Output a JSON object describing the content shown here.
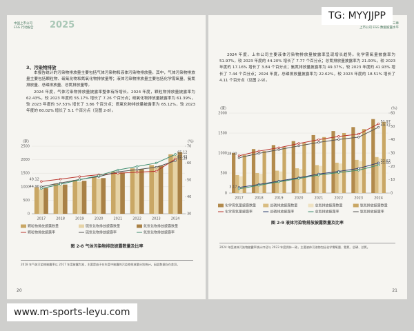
{
  "watermark": {
    "top": "TG: MYYJJPP",
    "bottom": "www.m-sports-leyu.com"
  },
  "left_page": {
    "header": {
      "brand_line1": "中国上市公司",
      "brand_line2": "ESG 行动报告",
      "year": "2025"
    },
    "section": "3、污染物排放",
    "paragraphs": [
      "本报告统计的污染物排放量主要包括气体污染物和液体污染物排放量。其中，气体污染物排放量主要包括颗粒物、硫氧化物和氮氧化物排放量等；液体污染物排放量主要包括化学需氧量、氨氮排放量、总磷排放量、总氮排放量等。",
      "2024 年度，气体污染物排放量披露率整体有所增长。2024 年度，颗粒物排放量披露率为 62.43%，较 2023 年度的 55.17% 增长了 7.26 个百分点；硫氧化物排放量披露率为 61.39%，较 2023 年度的 57.53% 增长了 3.86 个百分点；氮氧化物排放量披露率为 65.12%，较 2023 年度的 60.02% 增长了 5.1 个百分点（见图 2-8）。"
    ],
    "chart": {
      "type": "bar",
      "y_label": "(家)",
      "y2_label": "(%)",
      "categories": [
        "2017",
        "2018",
        "2019",
        "2020",
        "2021",
        "2022",
        "2023",
        "2024"
      ],
      "ylim": [
        0,
        2500
      ],
      "yticks": [
        0,
        500,
        1000,
        1500,
        2000,
        2500
      ],
      "y2lim": [
        30,
        70
      ],
      "y2ticks": [
        30,
        40,
        50,
        60,
        70
      ],
      "grid": true,
      "series": [
        {
          "name": "颗粒物排放披露数量",
          "color": "#c9a765",
          "values": [
            980,
            1120,
            1250,
            1350,
            1560,
            1680,
            1800,
            2200
          ]
        },
        {
          "name": "硫氧化物排放披露数量",
          "color": "#e6d3a6",
          "values": [
            900,
            1050,
            1180,
            1300,
            1500,
            1620,
            1750,
            2150
          ]
        },
        {
          "name": "氮氧化物排放披露数量",
          "color": "#a98146",
          "values": [
            950,
            1080,
            1220,
            1320,
            1530,
            1650,
            1780,
            2280
          ]
        },
        {
          "name": "颗粒物排放披露率",
          "color": "#b8322a",
          "axis": "y2",
          "values": [
            49.12,
            50.5,
            52.0,
            53.1,
            54.0,
            54.6,
            55.17,
            62.43
          ],
          "value_labels": [
            "49.12",
            null,
            null,
            null,
            null,
            null,
            null,
            "62.43"
          ]
        },
        {
          "name": "硫氧化物排放披露率",
          "color": "#555555",
          "axis": "y2",
          "values": [
            46.0,
            48.2,
            50.3,
            52.0,
            54.8,
            56.1,
            57.53,
            61.39
          ],
          "value_labels": [
            null,
            null,
            null,
            null,
            null,
            null,
            null,
            "61.39"
          ]
        },
        {
          "name": "氮氧化物排放披露率",
          "color": "#3d8c6e",
          "axis": "y2",
          "values": [
            44.9,
            47.5,
            50.1,
            52.6,
            55.9,
            58.0,
            60.02,
            65.12
          ],
          "value_labels": [
            "44.90",
            null,
            null,
            null,
            null,
            null,
            null,
            "65.12"
          ]
        }
      ]
    },
    "caption": "图 2-8 气体污染物排放披露数量及比率",
    "footnote": "2018 年气体污染物披露率以 2017 年度披露为准，主要是由于在年度中披露的污染物排放量分别统计，因此数据存在差异。",
    "page_number": "20"
  },
  "right_page": {
    "header": {
      "chapter": "第三章",
      "subtitle": "上市公司 ESG 数据披露水平"
    },
    "paragraphs": [
      "2024 年度，上市公司主要液体污染物排放量披露率呈现增长趋势。化学需氧量披露率为 51.97%，较 2023 年度的 44.20% 增长了 7.77 个百分点；总氮排放量披露率为 21.00%，较 2023 年度的 17.16% 增长了 3.84 个百分点；氨氮排放量披露率为 49.37%，较 2023 年度的 41.93% 增长了 7.44 个百分点；2024 年度，总磷排放量披露率为 22.62%，较 2023 年度的 18.51% 增长了 4.11 个百分点（见图 2-9）。"
    ],
    "chart": {
      "type": "bar",
      "y_label": "(家)",
      "y2_label": "(%)",
      "categories": [
        "2017",
        "2018",
        "2019",
        "2020",
        "2021",
        "2022",
        "2023",
        "2024"
      ],
      "ylim": [
        0,
        2000
      ],
      "yticks": [
        0,
        500,
        1000,
        1500,
        2000
      ],
      "y2lim": [
        0,
        60
      ],
      "y2ticks": [
        0,
        10,
        20,
        30,
        40,
        50,
        60
      ],
      "grid": true,
      "series": [
        {
          "name": "化学需氧量披露数量",
          "color": "#b28a4c",
          "values": [
            1000,
            1100,
            1200,
            1300,
            1450,
            1550,
            1650,
            1850
          ]
        },
        {
          "name": "总磷排放披露数量",
          "color": "#d9bd82",
          "values": [
            450,
            500,
            560,
            620,
            700,
            760,
            830,
            900
          ]
        },
        {
          "name": "总氮排放披露数量",
          "color": "#efe2c2",
          "values": [
            420,
            480,
            540,
            600,
            680,
            740,
            800,
            870
          ]
        },
        {
          "name": "氨氮排放披露数量",
          "color": "#c9a765",
          "values": [
            950,
            1050,
            1150,
            1250,
            1400,
            1500,
            1600,
            1780
          ]
        },
        {
          "name": "化学需氧量披露率",
          "color": "#b8322a",
          "axis": "y2",
          "values": [
            28.0,
            31.5,
            34.0,
            37.2,
            40.1,
            42.5,
            44.2,
            51.97
          ],
          "value_labels": [
            "28.00",
            null,
            null,
            null,
            null,
            null,
            null,
            "51.97"
          ]
        },
        {
          "name": "总磷排放披露率",
          "color": "#2c3e70",
          "axis": "y2",
          "values": [
            4.2,
            6.5,
            9.0,
            11.5,
            14.3,
            16.2,
            18.51,
            22.62
          ],
          "value_labels": [
            null,
            null,
            null,
            null,
            null,
            null,
            null,
            "22.62"
          ]
        },
        {
          "name": "总氮排放披露率",
          "color": "#3d8c6e",
          "axis": "y2",
          "values": [
            3.17,
            5.8,
            8.4,
            10.9,
            13.5,
            15.4,
            17.16,
            21.0
          ],
          "value_labels": [
            "3.17",
            null,
            null,
            null,
            null,
            null,
            null,
            "21.00"
          ]
        },
        {
          "name": "氨氮排放披露率",
          "color": "#555555",
          "axis": "y2",
          "values": [
            26.5,
            29.8,
            32.6,
            35.4,
            38.0,
            40.2,
            41.93,
            49.37
          ],
          "value_labels": [
            null,
            null,
            null,
            null,
            null,
            null,
            null,
            "49.37"
          ]
        }
      ]
    },
    "caption": "图 2-9 液体污染物排放披露数量及比率",
    "footnote": "2024 年度液体污染物披露率统计口径与 2023 年度保持一致，主要液体污染物包括化学需氧量、氨氮、总磷、总氮。",
    "page_number": "21"
  }
}
